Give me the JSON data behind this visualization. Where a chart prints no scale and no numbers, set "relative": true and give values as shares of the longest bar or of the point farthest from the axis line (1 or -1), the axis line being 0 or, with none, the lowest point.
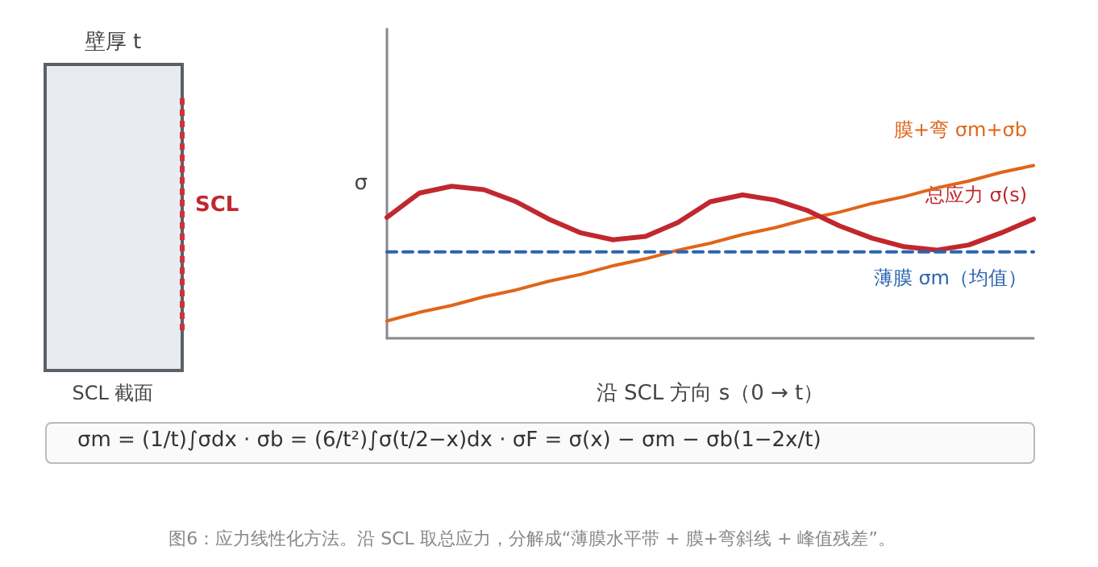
{
  "chart_data": {
    "type": "line",
    "relative": true,
    "ylabel": "σ",
    "xlabel": "沿 SCL 方向 s（0 → t）",
    "categories": [
      null,
      null,
      null,
      null,
      null,
      null,
      null,
      null,
      null,
      null,
      null,
      null,
      null,
      null,
      null,
      null,
      null,
      null,
      null,
      null,
      null
    ],
    "series": [
      {
        "name": "膜+弯 σm+σb",
        "color": "#e0651a",
        "values": [
          0.1,
          0.15,
          0.19,
          0.24,
          0.28,
          0.33,
          0.37,
          0.42,
          0.46,
          0.51,
          0.55,
          0.6,
          0.64,
          0.69,
          0.73,
          0.78,
          0.82,
          0.87,
          0.91,
          0.96,
          1.0
        ]
      },
      {
        "name": "总应力 σ(s)",
        "color": "#c0282e",
        "values": [
          0.7,
          0.84,
          0.88,
          0.86,
          0.79,
          0.69,
          0.61,
          0.57,
          0.59,
          0.67,
          0.79,
          0.83,
          0.8,
          0.74,
          0.65,
          0.58,
          0.53,
          0.51,
          0.54,
          0.61,
          0.69
        ]
      },
      {
        "name": "薄膜 σm（均值）",
        "color": "#2b64b0",
        "line_style": "dashed",
        "values": [
          0.5,
          0.5,
          0.5,
          0.5,
          0.5,
          0.5,
          0.5,
          0.5,
          0.5,
          0.5,
          0.5,
          0.5,
          0.5,
          0.5,
          0.5,
          0.5,
          0.5,
          0.5,
          0.5,
          0.5,
          0.5
        ]
      }
    ],
    "legend": false,
    "grid": false,
    "marker": "none",
    "line_style": "solid",
    "annotations": [
      "壁厚 t",
      "SCL",
      "SCL 截面",
      "σm = (1/t)∫σdx  ·  σb = (6/t²)∫σ(t/2−x)dx  ·  σF = σ(x) − σm − σb(1−2x/t)",
      "图6：应力线性化方法。沿 SCL 取总应力，分解成“薄膜水平带 + 膜+弯斜线 + 峰值残差”。"
    ]
  }
}
